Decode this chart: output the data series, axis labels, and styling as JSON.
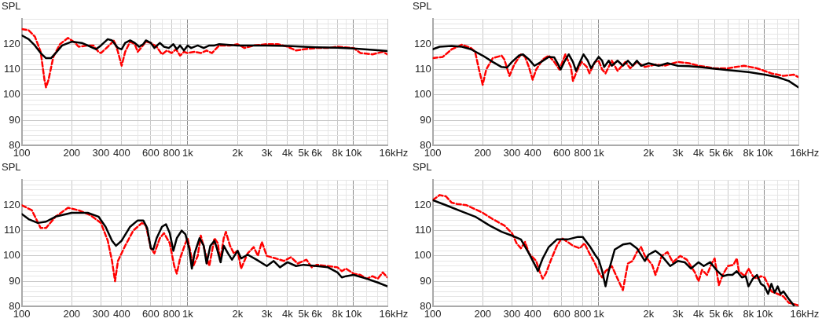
{
  "chart_data": [
    {
      "type": "line",
      "ylabel": "SPL",
      "xlabel": "Hz",
      "log": "x",
      "grid": true,
      "xlim": [
        100,
        16000
      ],
      "ylim": [
        80,
        130
      ],
      "xticks": [
        {
          "value": 100,
          "label": "100"
        },
        {
          "value": 200,
          "label": "200"
        },
        {
          "value": 300,
          "label": "300"
        },
        {
          "value": 400,
          "label": "400"
        },
        {
          "value": 500,
          "label": null
        },
        {
          "value": 600,
          "label": "600"
        },
        {
          "value": 700,
          "label": null
        },
        {
          "value": 800,
          "label": "800"
        },
        {
          "value": 900,
          "label": null
        },
        {
          "value": 1000,
          "label": "1k"
        },
        {
          "value": 2000,
          "label": "2k"
        },
        {
          "value": 3000,
          "label": "3k"
        },
        {
          "value": 4000,
          "label": "4k"
        },
        {
          "value": 5000,
          "label": "5k"
        },
        {
          "value": 6000,
          "label": "6k"
        },
        {
          "value": 7000,
          "label": null
        },
        {
          "value": 8000,
          "label": "8k"
        },
        {
          "value": 9000,
          "label": null
        },
        {
          "value": 10000,
          "label": "10k"
        },
        {
          "value": 12000,
          "label": null
        },
        {
          "value": 14000,
          "label": null
        },
        {
          "value": 16000,
          "label": "16k"
        }
      ],
      "yticks": [
        80,
        {
          "value": 82,
          "label": null
        },
        {
          "value": 84,
          "label": null
        },
        {
          "value": 86,
          "label": null
        },
        {
          "value": 88,
          "label": null
        },
        90,
        {
          "value": 92,
          "label": null
        },
        {
          "value": 94,
          "label": null
        },
        {
          "value": 96,
          "label": null
        },
        {
          "value": 98,
          "label": null
        },
        100,
        {
          "value": 102,
          "label": null
        },
        {
          "value": 104,
          "label": null
        },
        {
          "value": 106,
          "label": null
        },
        {
          "value": 108,
          "label": null
        },
        110,
        {
          "value": 112,
          "label": null
        },
        {
          "value": 114,
          "label": null
        },
        {
          "value": 116,
          "label": null
        },
        {
          "value": 118,
          "label": null
        },
        120,
        {
          "value": 122,
          "label": null
        },
        {
          "value": 124,
          "label": null
        },
        {
          "value": 126,
          "label": null
        },
        {
          "value": 128,
          "label": null
        },
        {
          "value": 130,
          "label": null
        }
      ],
      "series": [
        {
          "color": "#000000",
          "line_style": "solid",
          "x": [
            100,
            110,
            120,
            130,
            140,
            150,
            160,
            175,
            200,
            230,
            260,
            280,
            300,
            330,
            350,
            380,
            400,
            420,
            450,
            480,
            510,
            540,
            560,
            600,
            630,
            680,
            720,
            770,
            820,
            860,
            900,
            950,
            1000,
            1050,
            1150,
            1250,
            1350,
            1450,
            1550,
            2000,
            2500,
            3000,
            4000,
            5000,
            6000,
            8000,
            10000,
            13000,
            16000
          ],
          "values": [
            123.5,
            122,
            119.5,
            116.5,
            114.5,
            114.5,
            116.5,
            119.5,
            121,
            120.5,
            119,
            118,
            119.5,
            122,
            121.5,
            118.5,
            118,
            120.5,
            121.5,
            120.5,
            119,
            120,
            121.5,
            120.5,
            118.5,
            120.5,
            119,
            118.5,
            120,
            118,
            119.5,
            117.5,
            119.5,
            118.5,
            119.5,
            118.5,
            119.5,
            119.5,
            120,
            119.5,
            119.5,
            119.5,
            119.3,
            119,
            118.8,
            118.6,
            118.3,
            117.8,
            117.3
          ]
        },
        {
          "color": "#ff0000",
          "line_style": "dashed",
          "x": [
            100,
            110,
            120,
            130,
            137,
            140,
            145,
            155,
            170,
            190,
            210,
            220,
            250,
            270,
            290,
            300,
            330,
            360,
            380,
            400,
            420,
            450,
            480,
            500,
            530,
            560,
            600,
            650,
            700,
            750,
            800,
            850,
            900,
            950,
            1000,
            1100,
            1200,
            1300,
            1400,
            1550,
            1800,
            2000,
            2200,
            2500,
            3000,
            3500,
            4000,
            4500,
            5000,
            6000,
            7000,
            8000,
            10000,
            11000,
            13000,
            15000,
            16000
          ],
          "values": [
            126,
            125.5,
            123,
            117,
            106,
            103,
            106,
            115,
            120,
            122.5,
            120.5,
            119,
            119.5,
            119.5,
            117,
            116.5,
            119,
            121.5,
            117,
            111.5,
            117,
            121,
            120,
            117,
            119,
            121,
            120.5,
            119,
            116,
            117.5,
            116.5,
            118,
            115.5,
            117,
            116.5,
            117,
            116.5,
            117.5,
            116.5,
            119.5,
            119.5,
            120,
            118.5,
            119.5,
            120,
            120,
            119,
            117.5,
            118,
            118.5,
            118.5,
            119,
            118.5,
            116.5,
            116,
            117,
            116
          ]
        }
      ]
    },
    {
      "type": "line",
      "ylabel": "SPL",
      "xlabel": "Hz",
      "log": "x",
      "grid": true,
      "xlim": [
        100,
        16000
      ],
      "ylim": [
        80,
        130
      ],
      "xticks": [
        {
          "value": 100,
          "label": "100"
        },
        {
          "value": 200,
          "label": "200"
        },
        {
          "value": 300,
          "label": "300"
        },
        {
          "value": 400,
          "label": "400"
        },
        {
          "value": 500,
          "label": null
        },
        {
          "value": 600,
          "label": "600"
        },
        {
          "value": 700,
          "label": null
        },
        {
          "value": 800,
          "label": "800"
        },
        {
          "value": 900,
          "label": null
        },
        {
          "value": 1000,
          "label": "1k"
        },
        {
          "value": 2000,
          "label": "2k"
        },
        {
          "value": 3000,
          "label": "3k"
        },
        {
          "value": 4000,
          "label": "4k"
        },
        {
          "value": 5000,
          "label": "5k"
        },
        {
          "value": 6000,
          "label": "6k"
        },
        {
          "value": 7000,
          "label": null
        },
        {
          "value": 8000,
          "label": "8k"
        },
        {
          "value": 9000,
          "label": null
        },
        {
          "value": 10000,
          "label": "10k"
        },
        {
          "value": 12000,
          "label": null
        },
        {
          "value": 14000,
          "label": null
        },
        {
          "value": 16000,
          "label": "16k"
        }
      ],
      "yticks": [
        80,
        {
          "value": 82,
          "label": null
        },
        {
          "value": 84,
          "label": null
        },
        {
          "value": 86,
          "label": null
        },
        {
          "value": 88,
          "label": null
        },
        90,
        {
          "value": 92,
          "label": null
        },
        {
          "value": 94,
          "label": null
        },
        {
          "value": 96,
          "label": null
        },
        {
          "value": 98,
          "label": null
        },
        100,
        {
          "value": 102,
          "label": null
        },
        {
          "value": 104,
          "label": null
        },
        {
          "value": 106,
          "label": null
        },
        {
          "value": 108,
          "label": null
        },
        110,
        {
          "value": 112,
          "label": null
        },
        {
          "value": 114,
          "label": null
        },
        {
          "value": 116,
          "label": null
        },
        {
          "value": 118,
          "label": null
        },
        120,
        {
          "value": 122,
          "label": null
        },
        {
          "value": 124,
          "label": null
        },
        {
          "value": 126,
          "label": null
        },
        {
          "value": 128,
          "label": null
        },
        {
          "value": 130,
          "label": null
        }
      ],
      "series": [
        {
          "color": "#000000",
          "line_style": "solid",
          "x": [
            100,
            110,
            130,
            150,
            170,
            200,
            230,
            260,
            280,
            300,
            330,
            350,
            380,
            410,
            450,
            500,
            540,
            570,
            590,
            620,
            660,
            700,
            730,
            760,
            810,
            860,
            900,
            950,
            1000,
            1050,
            1080,
            1150,
            1200,
            1300,
            1400,
            1500,
            1600,
            1700,
            1800,
            2000,
            2300,
            2600,
            3000,
            3500,
            4000,
            5000,
            6000,
            8000,
            10000,
            12000,
            14000,
            16000
          ],
          "values": [
            118,
            119,
            119.3,
            119,
            118,
            115.5,
            113,
            111,
            110.8,
            113,
            115.5,
            116,
            114,
            111.5,
            113,
            115,
            114.8,
            112,
            110,
            113,
            116,
            113,
            109.5,
            112,
            116,
            113.5,
            110.5,
            113,
            115,
            113.5,
            111,
            113.5,
            111.5,
            113.5,
            111.5,
            113.5,
            111.5,
            113.5,
            111.5,
            112.5,
            111.5,
            112.5,
            111.5,
            111.3,
            111,
            110.3,
            109.8,
            109,
            108,
            107,
            105.5,
            103
          ]
        },
        {
          "color": "#ff0000",
          "line_style": "dashed",
          "x": [
            100,
            115,
            130,
            150,
            170,
            180,
            190,
            200,
            210,
            230,
            260,
            270,
            290,
            310,
            340,
            360,
            380,
            400,
            420,
            460,
            500,
            540,
            580,
            630,
            680,
            700,
            740,
            790,
            850,
            880,
            950,
            1000,
            1050,
            1100,
            1200,
            1300,
            1450,
            1550,
            1700,
            1900,
            2200,
            2500,
            3000,
            3500,
            4000,
            5000,
            6000,
            7500,
            9000,
            11000,
            13000,
            15000,
            16000
          ],
          "values": [
            114.5,
            115,
            118,
            119.8,
            118.5,
            117,
            110,
            104,
            110,
            114.5,
            115.5,
            114,
            107.5,
            112,
            116,
            115,
            111,
            106,
            110,
            114,
            115.5,
            113,
            110,
            116,
            111,
            105.5,
            109.5,
            113,
            111,
            108.5,
            113,
            113.5,
            110,
            108.5,
            113.5,
            109.5,
            113,
            110.5,
            113,
            111,
            112,
            111.5,
            113,
            112.5,
            111.5,
            110.5,
            110.5,
            111.5,
            110.5,
            108.5,
            107.5,
            108,
            107
          ]
        }
      ]
    },
    {
      "type": "line",
      "ylabel": "SPL",
      "xlabel": "Hz",
      "log": "x",
      "grid": true,
      "xlim": [
        100,
        16000
      ],
      "ylim": [
        80,
        130
      ],
      "xticks": [
        {
          "value": 100,
          "label": "100"
        },
        {
          "value": 200,
          "label": "200"
        },
        {
          "value": 300,
          "label": "300"
        },
        {
          "value": 400,
          "label": "400"
        },
        {
          "value": 500,
          "label": null
        },
        {
          "value": 600,
          "label": "600"
        },
        {
          "value": 700,
          "label": null
        },
        {
          "value": 800,
          "label": "800"
        },
        {
          "value": 900,
          "label": null
        },
        {
          "value": 1000,
          "label": "1k"
        },
        {
          "value": 2000,
          "label": "2k"
        },
        {
          "value": 3000,
          "label": "3k"
        },
        {
          "value": 4000,
          "label": "4k"
        },
        {
          "value": 5000,
          "label": "5k"
        },
        {
          "value": 6000,
          "label": "6k"
        },
        {
          "value": 7000,
          "label": null
        },
        {
          "value": 8000,
          "label": "8k"
        },
        {
          "value": 9000,
          "label": null
        },
        {
          "value": 10000,
          "label": "10k"
        },
        {
          "value": 12000,
          "label": null
        },
        {
          "value": 14000,
          "label": null
        },
        {
          "value": 16000,
          "label": "16k"
        }
      ],
      "yticks": [
        80,
        {
          "value": 82,
          "label": null
        },
        {
          "value": 84,
          "label": null
        },
        {
          "value": 86,
          "label": null
        },
        {
          "value": 88,
          "label": null
        },
        90,
        {
          "value": 92,
          "label": null
        },
        {
          "value": 94,
          "label": null
        },
        {
          "value": 96,
          "label": null
        },
        {
          "value": 98,
          "label": null
        },
        100,
        {
          "value": 102,
          "label": null
        },
        {
          "value": 104,
          "label": null
        },
        {
          "value": 106,
          "label": null
        },
        {
          "value": 108,
          "label": null
        },
        110,
        {
          "value": 112,
          "label": null
        },
        {
          "value": 114,
          "label": null
        },
        {
          "value": 116,
          "label": null
        },
        {
          "value": 118,
          "label": null
        },
        120,
        {
          "value": 122,
          "label": null
        },
        {
          "value": 124,
          "label": null
        },
        {
          "value": 126,
          "label": null
        },
        {
          "value": 128,
          "label": null
        },
        {
          "value": 130,
          "label": null
        }
      ],
      "series": [
        {
          "color": "#000000",
          "line_style": "solid",
          "x": [
            100,
            110,
            125,
            140,
            160,
            200,
            250,
            290,
            320,
            350,
            370,
            400,
            450,
            500,
            540,
            570,
            600,
            620,
            650,
            700,
            740,
            780,
            820,
            860,
            920,
            970,
            1020,
            1060,
            1100,
            1180,
            1250,
            1300,
            1370,
            1450,
            1500,
            1580,
            1650,
            1750,
            1850,
            2000,
            2100,
            2300,
            2600,
            3000,
            3300,
            3600,
            4000,
            4500,
            5000,
            6000,
            7000,
            8000,
            8500,
            9000,
            10000,
            12000,
            14000,
            16000
          ],
          "values": [
            116.5,
            114.5,
            113,
            113.5,
            115.5,
            117,
            117,
            115.5,
            111.5,
            106,
            104,
            106,
            111.5,
            114,
            114,
            111,
            103,
            102.5,
            107,
            111.5,
            112.5,
            109,
            102,
            107,
            110,
            108.5,
            103,
            95,
            101,
            107,
            104,
            97,
            104,
            106,
            103,
            97.5,
            104,
            101,
            98.5,
            102,
            99,
            100.5,
            98.5,
            96,
            98,
            95.5,
            97.5,
            96,
            96.5,
            96,
            95.5,
            93.5,
            91.5,
            92,
            92.5,
            91,
            89.5,
            88
          ]
        },
        {
          "color": "#ff0000",
          "line_style": "dashed",
          "x": [
            100,
            115,
            130,
            140,
            160,
            190,
            220,
            260,
            300,
            330,
            350,
            365,
            380,
            420,
            470,
            530,
            560,
            600,
            630,
            680,
            720,
            780,
            830,
            860,
            900,
            970,
            1000,
            1080,
            1150,
            1200,
            1280,
            1350,
            1450,
            1520,
            1570,
            1650,
            1700,
            1800,
            1900,
            2000,
            2100,
            2300,
            2500,
            2650,
            2800,
            3000,
            3400,
            3800,
            4200,
            4600,
            5200,
            5600,
            6000,
            7000,
            8000,
            8500,
            9000,
            10000,
            11000,
            12000,
            13000,
            14000,
            15000,
            16000
          ],
          "values": [
            120,
            118,
            111,
            111,
            115.5,
            119,
            118,
            116,
            113,
            106,
            98,
            90,
            98,
            104,
            110,
            113,
            112,
            103,
            101,
            107,
            109,
            105,
            96,
            93,
            99,
            105,
            107,
            96,
            100,
            108,
            101,
            96,
            107,
            105,
            98,
            107,
            109.5,
            104,
            101,
            102,
            95,
            101,
            103.5,
            100,
            105.5,
            100,
            99,
            98,
            99.5,
            97,
            98.5,
            95.5,
            96.5,
            96,
            95.5,
            94,
            95,
            93,
            92.5,
            91,
            92,
            91,
            93.5,
            91.5
          ]
        }
      ]
    },
    {
      "type": "line",
      "ylabel": "SPL",
      "xlabel": "Hz",
      "log": "x",
      "grid": true,
      "xlim": [
        100,
        16000
      ],
      "ylim": [
        80,
        130
      ],
      "xticks": [
        {
          "value": 100,
          "label": "100"
        },
        {
          "value": 200,
          "label": "200"
        },
        {
          "value": 300,
          "label": "300"
        },
        {
          "value": 400,
          "label": "400"
        },
        {
          "value": 500,
          "label": null
        },
        {
          "value": 600,
          "label": "600"
        },
        {
          "value": 700,
          "label": null
        },
        {
          "value": 800,
          "label": "800"
        },
        {
          "value": 900,
          "label": null
        },
        {
          "value": 1000,
          "label": "1k"
        },
        {
          "value": 2000,
          "label": "2k"
        },
        {
          "value": 3000,
          "label": "3k"
        },
        {
          "value": 4000,
          "label": "4k"
        },
        {
          "value": 5000,
          "label": "5k"
        },
        {
          "value": 6000,
          "label": "6k"
        },
        {
          "value": 7000,
          "label": null
        },
        {
          "value": 8000,
          "label": "8k"
        },
        {
          "value": 9000,
          "label": null
        },
        {
          "value": 10000,
          "label": "10k"
        },
        {
          "value": 12000,
          "label": null
        },
        {
          "value": 14000,
          "label": null
        },
        {
          "value": 16000,
          "label": "16k"
        }
      ],
      "yticks": [
        80,
        {
          "value": 82,
          "label": null
        },
        {
          "value": 84,
          "label": null
        },
        {
          "value": 86,
          "label": null
        },
        {
          "value": 88,
          "label": null
        },
        90,
        {
          "value": 92,
          "label": null
        },
        {
          "value": 94,
          "label": null
        },
        {
          "value": 96,
          "label": null
        },
        {
          "value": 98,
          "label": null
        },
        100,
        {
          "value": 102,
          "label": null
        },
        {
          "value": 104,
          "label": null
        },
        {
          "value": 106,
          "label": null
        },
        {
          "value": 108,
          "label": null
        },
        110,
        {
          "value": 112,
          "label": null
        },
        {
          "value": 114,
          "label": null
        },
        {
          "value": 116,
          "label": null
        },
        {
          "value": 118,
          "label": null
        },
        120,
        {
          "value": 122,
          "label": null
        },
        {
          "value": 124,
          "label": null
        },
        {
          "value": 126,
          "label": null
        },
        {
          "value": 128,
          "label": null
        },
        {
          "value": 130,
          "label": null
        }
      ],
      "series": [
        {
          "color": "#000000",
          "line_style": "solid",
          "x": [
            100,
            120,
            150,
            180,
            220,
            260,
            300,
            340,
            380,
            420,
            430,
            460,
            500,
            560,
            650,
            750,
            800,
            880,
            950,
            1000,
            1050,
            1100,
            1150,
            1250,
            1400,
            1550,
            1700,
            1900,
            2000,
            2200,
            2400,
            2700,
            3000,
            3300,
            3600,
            4000,
            4300,
            4700,
            5200,
            5600,
            6000,
            6400,
            6800,
            7300,
            7700,
            8000,
            8500,
            9000,
            9500,
            10000,
            10500,
            11000,
            11500,
            12000,
            12500,
            13000,
            14000,
            15000
          ],
          "values": [
            122,
            120,
            117.5,
            115.5,
            112,
            109.5,
            108,
            106.5,
            101,
            95.5,
            94,
            99,
            103.5,
            106.5,
            106.5,
            107.5,
            107.5,
            104,
            100.5,
            98.5,
            94,
            88,
            94,
            102.5,
            104.5,
            105,
            103,
            98,
            100.5,
            102,
            100,
            96,
            98,
            97.5,
            95,
            97.5,
            96,
            97.5,
            94,
            92,
            92.5,
            92.5,
            94,
            91.5,
            92,
            88,
            91,
            92.5,
            89,
            88,
            85,
            89,
            85.5,
            88,
            85,
            86,
            83,
            80.5
          ]
        },
        {
          "color": "#ff0000",
          "line_style": "dashed",
          "x": [
            100,
            110,
            120,
            130,
            140,
            160,
            200,
            230,
            270,
            300,
            320,
            340,
            360,
            380,
            420,
            440,
            460,
            480,
            520,
            560,
            600,
            650,
            700,
            770,
            820,
            880,
            950,
            1000,
            1050,
            1100,
            1200,
            1300,
            1400,
            1500,
            1600,
            1700,
            1800,
            1900,
            2100,
            2200,
            2400,
            2600,
            2800,
            3100,
            3400,
            3800,
            4000,
            4200,
            4500,
            4800,
            5000,
            5300,
            5600,
            6000,
            6500,
            6800,
            7000,
            7600,
            8000,
            8500,
            9000,
            9500,
            10000,
            11000,
            12000,
            13000,
            14000,
            15000,
            16000
          ],
          "values": [
            122,
            124,
            123.5,
            121,
            120.5,
            120,
            117,
            114.5,
            112,
            109,
            105,
            103,
            105.5,
            101,
            98,
            94,
            91,
            93,
            99,
            104,
            107,
            105.5,
            104,
            103,
            105,
            101,
            97,
            93.5,
            91.5,
            94,
            96,
            91,
            86.5,
            97,
            98,
            101.5,
            103.5,
            100,
            96.5,
            92.5,
            100,
            101.5,
            97.5,
            100,
            98.5,
            93.5,
            90,
            94.5,
            92.5,
            97,
            99,
            88.5,
            92.5,
            96,
            96.5,
            99,
            94,
            92,
            95,
            92,
            91,
            92,
            91.5,
            86,
            85,
            84,
            81.5,
            81,
            80.5
          ]
        }
      ]
    }
  ]
}
